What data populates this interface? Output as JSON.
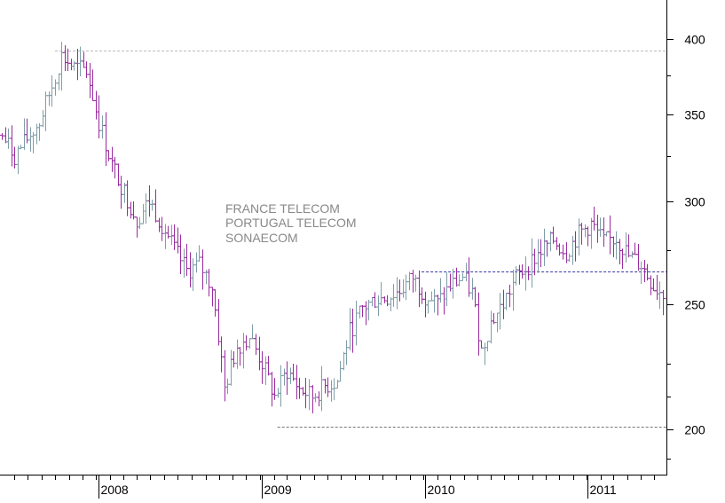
{
  "chart_data": {
    "type": "ohlc",
    "title_lines": [
      "FRANCE TELECOM",
      "PORTUGAL TELECOM",
      "SONAECOM"
    ],
    "y_axis": {
      "scale": "log",
      "range": [
        185,
        420
      ],
      "labeled_ticks": [
        400,
        350,
        300,
        250,
        200
      ],
      "minor_ticks": [
        375,
        325,
        275,
        225,
        212,
        190
      ],
      "position": "right"
    },
    "x_axis": {
      "type": "date",
      "range": [
        "2007-06-04",
        "2011-06-20"
      ],
      "labels": [
        {
          "date": "2008-01-07",
          "label": "2008"
        },
        {
          "date": "2009-01-05",
          "label": "2009"
        },
        {
          "date": "2010-01-04",
          "label": "2010"
        },
        {
          "date": "2011-01-03",
          "label": "2011"
        }
      ],
      "month_ticks": true
    },
    "bar_colors": {
      "up": "#7f9ea8",
      "down": "#9a2aa0"
    },
    "reference_lines": [
      {
        "value": 392,
        "from": "2007-10-01",
        "to": "2011-06-20",
        "color": "#bbbbbb"
      },
      {
        "value": 265,
        "from": "2009-12-28",
        "to": "2011-06-20",
        "color": "#3a3aa8"
      },
      {
        "value": 201,
        "from": "2009-02-09",
        "to": "2011-06-20",
        "color": "#777777"
      }
    ],
    "anchors": [
      [
        "2007-06-04",
        337
      ],
      [
        "2007-07-02",
        325
      ],
      [
        "2007-07-30",
        335
      ],
      [
        "2007-08-27",
        345
      ],
      [
        "2007-09-24",
        368
      ],
      [
        "2007-10-15",
        388
      ],
      [
        "2007-11-12",
        380
      ],
      [
        "2007-12-10",
        378
      ],
      [
        "2008-01-07",
        345
      ],
      [
        "2008-02-04",
        320
      ],
      [
        "2008-03-03",
        305
      ],
      [
        "2008-03-31",
        290
      ],
      [
        "2008-04-28",
        300
      ],
      [
        "2008-05-26",
        288
      ],
      [
        "2008-06-23",
        275
      ],
      [
        "2008-07-21",
        265
      ],
      [
        "2008-08-18",
        268
      ],
      [
        "2008-09-15",
        258
      ],
      [
        "2008-10-13",
        215
      ],
      [
        "2008-11-10",
        232
      ],
      [
        "2008-12-08",
        236
      ],
      [
        "2009-01-05",
        225
      ],
      [
        "2009-02-02",
        212
      ],
      [
        "2009-03-02",
        222
      ],
      [
        "2009-03-30",
        215
      ],
      [
        "2009-04-27",
        212
      ],
      [
        "2009-05-25",
        216
      ],
      [
        "2009-06-22",
        218
      ],
      [
        "2009-07-20",
        238
      ],
      [
        "2009-08-17",
        248
      ],
      [
        "2009-09-14",
        252
      ],
      [
        "2009-10-12",
        253
      ],
      [
        "2009-11-09",
        256
      ],
      [
        "2009-12-07",
        262
      ],
      [
        "2010-01-04",
        254
      ],
      [
        "2010-02-01",
        250
      ],
      [
        "2010-03-01",
        258
      ],
      [
        "2010-03-29",
        262
      ],
      [
        "2010-04-19",
        255
      ],
      [
        "2010-05-10",
        230
      ],
      [
        "2010-05-31",
        242
      ],
      [
        "2010-06-28",
        250
      ],
      [
        "2010-07-26",
        262
      ],
      [
        "2010-08-23",
        268
      ],
      [
        "2010-09-20",
        275
      ],
      [
        "2010-10-18",
        280
      ],
      [
        "2010-11-15",
        274
      ],
      [
        "2010-12-13",
        283
      ],
      [
        "2011-01-10",
        288
      ],
      [
        "2011-02-07",
        279
      ],
      [
        "2011-03-07",
        281
      ],
      [
        "2011-04-04",
        272
      ],
      [
        "2011-05-02",
        268
      ],
      [
        "2011-05-30",
        258
      ],
      [
        "2011-06-20",
        255
      ]
    ]
  }
}
